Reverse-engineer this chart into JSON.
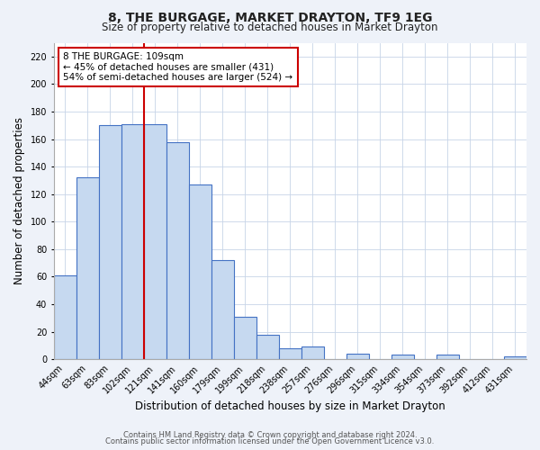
{
  "title": "8, THE BURGAGE, MARKET DRAYTON, TF9 1EG",
  "subtitle": "Size of property relative to detached houses in Market Drayton",
  "xlabel": "Distribution of detached houses by size in Market Drayton",
  "ylabel": "Number of detached properties",
  "bar_labels": [
    "44sqm",
    "63sqm",
    "83sqm",
    "102sqm",
    "121sqm",
    "141sqm",
    "160sqm",
    "179sqm",
    "199sqm",
    "218sqm",
    "238sqm",
    "257sqm",
    "276sqm",
    "296sqm",
    "315sqm",
    "334sqm",
    "354sqm",
    "373sqm",
    "392sqm",
    "412sqm",
    "431sqm"
  ],
  "bar_values": [
    61,
    132,
    170,
    171,
    171,
    158,
    127,
    72,
    31,
    18,
    8,
    9,
    0,
    4,
    0,
    3,
    0,
    3,
    0,
    0,
    2
  ],
  "bar_color_face": "#c6d9f0",
  "bar_color_edge": "#4472c4",
  "bar_width": 1.0,
  "ylim": [
    0,
    230
  ],
  "yticks": [
    0,
    20,
    40,
    60,
    80,
    100,
    120,
    140,
    160,
    180,
    200,
    220
  ],
  "vline_x_index": 3.5,
  "vline_color": "#cc0000",
  "annotation_title": "8 THE BURGAGE: 109sqm",
  "annotation_line1": "← 45% of detached houses are smaller (431)",
  "annotation_line2": "54% of semi-detached houses are larger (524) →",
  "annotation_box_color": "#cc0000",
  "footer1": "Contains HM Land Registry data © Crown copyright and database right 2024.",
  "footer2": "Contains public sector information licensed under the Open Government Licence v3.0.",
  "bg_color": "#eef2f9",
  "plot_bg_color": "#ffffff",
  "title_fontsize": 10,
  "subtitle_fontsize": 8.5,
  "tick_fontsize": 7,
  "label_fontsize": 8.5,
  "footer_fontsize": 6.0
}
